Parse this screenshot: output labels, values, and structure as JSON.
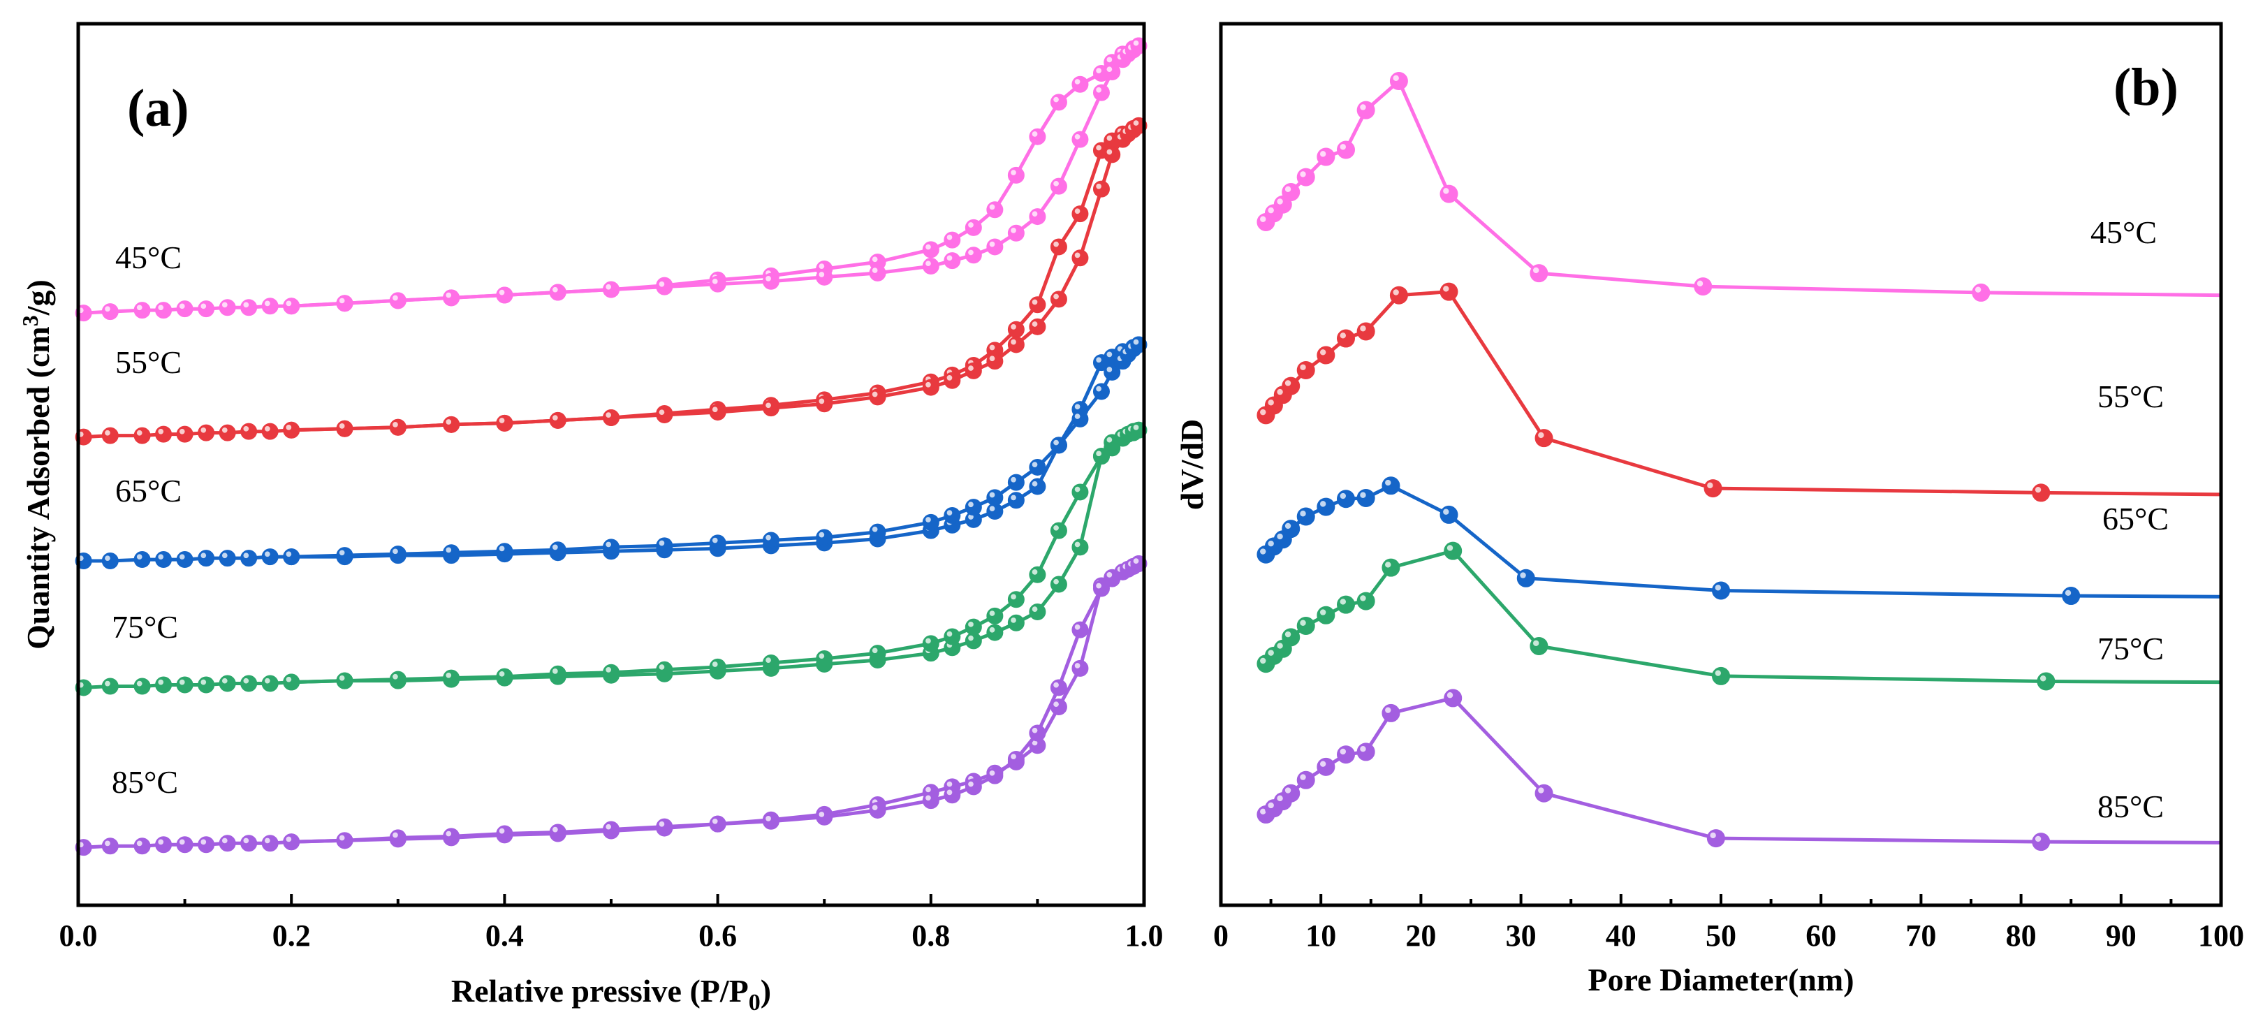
{
  "chart_data": [
    {
      "type": "line",
      "panel_label": "(a)",
      "xlabel": "Relative pressive (P/P",
      "xlabel_sub": "0",
      "xlabel_end": ")",
      "ylabel": "Quantity Adsorbed (cm",
      "ylabel_sup": "3",
      "ylabel_end": "/g)",
      "xlim": [
        0.0,
        1.0
      ],
      "ylim": [
        0,
        640
      ],
      "y_ticks_shown": false,
      "xticks": [
        "0.0",
        "0.2",
        "0.4",
        "0.6",
        "0.8",
        "1.0"
      ],
      "series": [
        {
          "name": "45°C",
          "color": "#ff6fe6",
          "adsorption": {
            "x": [
              0.005,
              0.03,
              0.06,
              0.08,
              0.1,
              0.12,
              0.14,
              0.16,
              0.18,
              0.2,
              0.25,
              0.3,
              0.35,
              0.4,
              0.45,
              0.5,
              0.55,
              0.6,
              0.65,
              0.7,
              0.75,
              0.8,
              0.82,
              0.84,
              0.86,
              0.88,
              0.9,
              0.92,
              0.94,
              0.96,
              0.97,
              0.98,
              0.985,
              0.99,
              0.995
            ],
            "y": [
              430,
              431,
              432,
              432,
              433,
              433,
              434,
              434,
              435,
              435,
              437,
              439,
              441,
              443,
              445,
              447,
              449,
              451,
              453,
              456,
              459,
              464,
              468,
              472,
              478,
              488,
              500,
              522,
              556,
              590,
              605,
              614,
              618,
              621,
              624
            ]
          },
          "desorption": {
            "x": [
              0.995,
              0.99,
              0.98,
              0.97,
              0.96,
              0.94,
              0.92,
              0.9,
              0.88,
              0.86,
              0.84,
              0.82,
              0.8,
              0.75,
              0.7,
              0.65,
              0.6,
              0.55,
              0.5,
              0.45,
              0.4,
              0.35,
              0.3,
              0.25,
              0.2
            ],
            "y": [
              624,
              622,
              618,
              612,
              604,
              596,
              583,
              558,
              530,
              505,
              492,
              483,
              476,
              467,
              462,
              457,
              454,
              450,
              447,
              445,
              443,
              441,
              439,
              437,
              435
            ]
          }
        },
        {
          "name": "55°C",
          "color": "#e8393f",
          "adsorption": {
            "x": [
              0.005,
              0.03,
              0.06,
              0.08,
              0.1,
              0.12,
              0.14,
              0.16,
              0.18,
              0.2,
              0.25,
              0.3,
              0.35,
              0.4,
              0.45,
              0.5,
              0.55,
              0.6,
              0.65,
              0.7,
              0.75,
              0.8,
              0.82,
              0.84,
              0.86,
              0.88,
              0.9,
              0.92,
              0.94,
              0.96,
              0.97,
              0.98,
              0.985,
              0.99,
              0.995
            ],
            "y": [
              340,
              341,
              341,
              342,
              342,
              343,
              343,
              344,
              344,
              345,
              346,
              347,
              349,
              350,
              352,
              354,
              356,
              358,
              361,
              364,
              369,
              376,
              381,
              388,
              395,
              407,
              420,
              440,
              470,
              520,
              545,
              556,
              560,
              563,
              566
            ]
          },
          "desorption": {
            "x": [
              0.995,
              0.99,
              0.98,
              0.97,
              0.96,
              0.94,
              0.92,
              0.9,
              0.88,
              0.86,
              0.84,
              0.82,
              0.8,
              0.75,
              0.7,
              0.65,
              0.6,
              0.55,
              0.5,
              0.45,
              0.4,
              0.35,
              0.3,
              0.25,
              0.2
            ],
            "y": [
              566,
              564,
              560,
              555,
              548,
              502,
              478,
              436,
              418,
              403,
              392,
              385,
              380,
              372,
              367,
              363,
              360,
              357,
              354,
              352,
              350,
              349,
              347,
              346,
              345
            ]
          }
        },
        {
          "name": "65°C",
          "color": "#1565c8",
          "adsorption": {
            "x": [
              0.005,
              0.03,
              0.06,
              0.08,
              0.1,
              0.12,
              0.14,
              0.16,
              0.18,
              0.2,
              0.25,
              0.3,
              0.35,
              0.4,
              0.45,
              0.5,
              0.55,
              0.6,
              0.65,
              0.7,
              0.75,
              0.8,
              0.82,
              0.84,
              0.86,
              0.88,
              0.9,
              0.92,
              0.94,
              0.96,
              0.97,
              0.98,
              0.985,
              0.99,
              0.995
            ],
            "y": [
              250,
              250,
              251,
              251,
              251,
              252,
              252,
              252,
              253,
              253,
              254,
              255,
              256,
              257,
              258,
              260,
              261,
              263,
              265,
              267,
              271,
              278,
              283,
              289,
              296,
              307,
              318,
              334,
              353,
              373,
              387,
              395,
              400,
              404,
              407
            ]
          },
          "desorption": {
            "x": [
              0.995,
              0.99,
              0.98,
              0.97,
              0.96,
              0.94,
              0.92,
              0.9,
              0.88,
              0.86,
              0.84,
              0.82,
              0.8,
              0.75,
              0.7,
              0.65,
              0.6,
              0.55,
              0.5,
              0.45,
              0.4,
              0.35,
              0.3,
              0.25,
              0.2
            ],
            "y": [
              407,
              405,
              402,
              398,
              394,
              360,
              334,
              304,
              294,
              286,
              280,
              276,
              272,
              266,
              263,
              261,
              259,
              258,
              257,
              256,
              255,
              254,
              254,
              253,
              253
            ]
          }
        },
        {
          "name": "75°C",
          "color": "#2ca76b",
          "adsorption": {
            "x": [
              0.005,
              0.03,
              0.06,
              0.08,
              0.1,
              0.12,
              0.14,
              0.16,
              0.18,
              0.2,
              0.25,
              0.3,
              0.35,
              0.4,
              0.45,
              0.5,
              0.55,
              0.6,
              0.65,
              0.7,
              0.75,
              0.8,
              0.82,
              0.84,
              0.86,
              0.88,
              0.9,
              0.92,
              0.94,
              0.96,
              0.97,
              0.98,
              0.985,
              0.99,
              0.995
            ],
            "y": [
              158,
              159,
              159,
              160,
              160,
              160,
              161,
              161,
              161,
              162,
              163,
              164,
              165,
              166,
              168,
              169,
              171,
              173,
              176,
              179,
              183,
              190,
              195,
              202,
              210,
              222,
              240,
              272,
              300,
              326,
              336,
              340,
              342,
              344,
              345
            ]
          },
          "desorption": {
            "x": [
              0.995,
              0.99,
              0.98,
              0.97,
              0.96,
              0.94,
              0.92,
              0.9,
              0.88,
              0.86,
              0.84,
              0.82,
              0.8,
              0.75,
              0.7,
              0.65,
              0.6,
              0.55,
              0.5,
              0.45,
              0.4,
              0.35,
              0.3,
              0.25,
              0.2
            ],
            "y": [
              345,
              343,
              339,
              332,
              326,
              260,
              233,
              213,
              205,
              198,
              192,
              187,
              183,
              178,
              175,
              172,
              170,
              168,
              167,
              166,
              165,
              164,
              163,
              163,
              162
            ]
          }
        },
        {
          "name": "85°C",
          "color": "#a35ee0",
          "adsorption": {
            "x": [
              0.005,
              0.03,
              0.06,
              0.08,
              0.1,
              0.12,
              0.14,
              0.16,
              0.18,
              0.2,
              0.25,
              0.3,
              0.35,
              0.4,
              0.45,
              0.5,
              0.55,
              0.6,
              0.65,
              0.7,
              0.75,
              0.8,
              0.82,
              0.84,
              0.86,
              0.88,
              0.9,
              0.92,
              0.94,
              0.96,
              0.97,
              0.98,
              0.985,
              0.99,
              0.995
            ],
            "y": [
              42,
              43,
              43,
              44,
              44,
              44,
              45,
              45,
              45,
              46,
              47,
              49,
              50,
              52,
              53,
              55,
              57,
              59,
              61,
              64,
              69,
              76,
              80,
              86,
              94,
              106,
              125,
              158,
              200,
              230,
              238,
              242,
              244,
              246,
              248
            ]
          },
          "desorption": {
            "x": [
              0.995,
              0.99,
              0.98,
              0.97,
              0.96,
              0.94,
              0.92,
              0.9,
              0.88,
              0.86,
              0.84,
              0.82,
              0.8,
              0.75,
              0.7,
              0.65,
              0.6,
              0.55,
              0.5,
              0.45,
              0.4,
              0.35,
              0.3,
              0.25,
              0.2
            ],
            "y": [
              248,
              246,
              242,
              237,
              232,
              172,
              144,
              116,
              104,
              96,
              90,
              86,
              82,
              73,
              66,
              62,
              59,
              56,
              54,
              52,
              51,
              49,
              48,
              47,
              46
            ]
          }
        }
      ]
    },
    {
      "type": "line",
      "panel_label": "(b)",
      "xlabel": "Pore Diameter(nm)",
      "ylabel": "dV/dD",
      "xlim": [
        0,
        100
      ],
      "ylim": [
        0,
        100
      ],
      "y_ticks_shown": false,
      "xticks": [
        "0",
        "10",
        "20",
        "30",
        "40",
        "50",
        "60",
        "70",
        "80",
        "90",
        "100"
      ],
      "series": [
        {
          "name": "45°C",
          "color": "#ff6fe6",
          "x": [
            4.5,
            5.3,
            6.2,
            7.0,
            8.5,
            10.5,
            12.5,
            14.5,
            17.8,
            22.8,
            31.8,
            48.2,
            76.0,
            100
          ],
          "y": [
            77.5,
            78.5,
            79.5,
            80.9,
            82.6,
            84.9,
            85.7,
            90.2,
            93.5,
            80.7,
            71.7,
            70.2,
            69.5,
            69.2
          ]
        },
        {
          "name": "55°C",
          "color": "#e8393f",
          "x": [
            4.5,
            5.3,
            6.2,
            7.0,
            8.5,
            10.5,
            12.5,
            14.5,
            17.8,
            22.8,
            32.3,
            49.2,
            82.0,
            100
          ],
          "y": [
            55.6,
            56.7,
            57.9,
            58.9,
            60.7,
            62.4,
            64.3,
            65.1,
            69.2,
            69.6,
            53.0,
            47.3,
            46.8,
            46.6
          ]
        },
        {
          "name": "65°C",
          "color": "#1565c8",
          "x": [
            4.5,
            5.3,
            6.2,
            7.0,
            8.5,
            10.5,
            12.5,
            14.5,
            17.0,
            22.8,
            30.5,
            50.0,
            85.0,
            100
          ],
          "y": [
            39.8,
            40.7,
            41.5,
            42.7,
            44.1,
            45.2,
            46.1,
            46.2,
            47.6,
            44.3,
            37.1,
            35.7,
            35.1,
            35.0
          ]
        },
        {
          "name": "75°C",
          "color": "#2ca76b",
          "x": [
            4.5,
            5.3,
            6.2,
            7.0,
            8.5,
            10.5,
            12.5,
            14.5,
            17.0,
            23.2,
            31.8,
            50.0,
            82.5,
            100
          ],
          "y": [
            27.4,
            28.3,
            29.1,
            30.4,
            31.7,
            32.9,
            34.1,
            34.5,
            38.3,
            40.2,
            29.4,
            26.0,
            25.4,
            25.3
          ]
        },
        {
          "name": "85°C",
          "color": "#a35ee0",
          "x": [
            4.5,
            5.3,
            6.2,
            7.0,
            8.5,
            10.5,
            12.5,
            14.5,
            17.0,
            23.2,
            32.3,
            49.5,
            82.0,
            100
          ],
          "y": [
            10.3,
            11.0,
            11.8,
            12.7,
            14.2,
            15.7,
            17.1,
            17.4,
            21.8,
            23.5,
            12.7,
            7.6,
            7.2,
            7.1
          ]
        }
      ]
    }
  ]
}
